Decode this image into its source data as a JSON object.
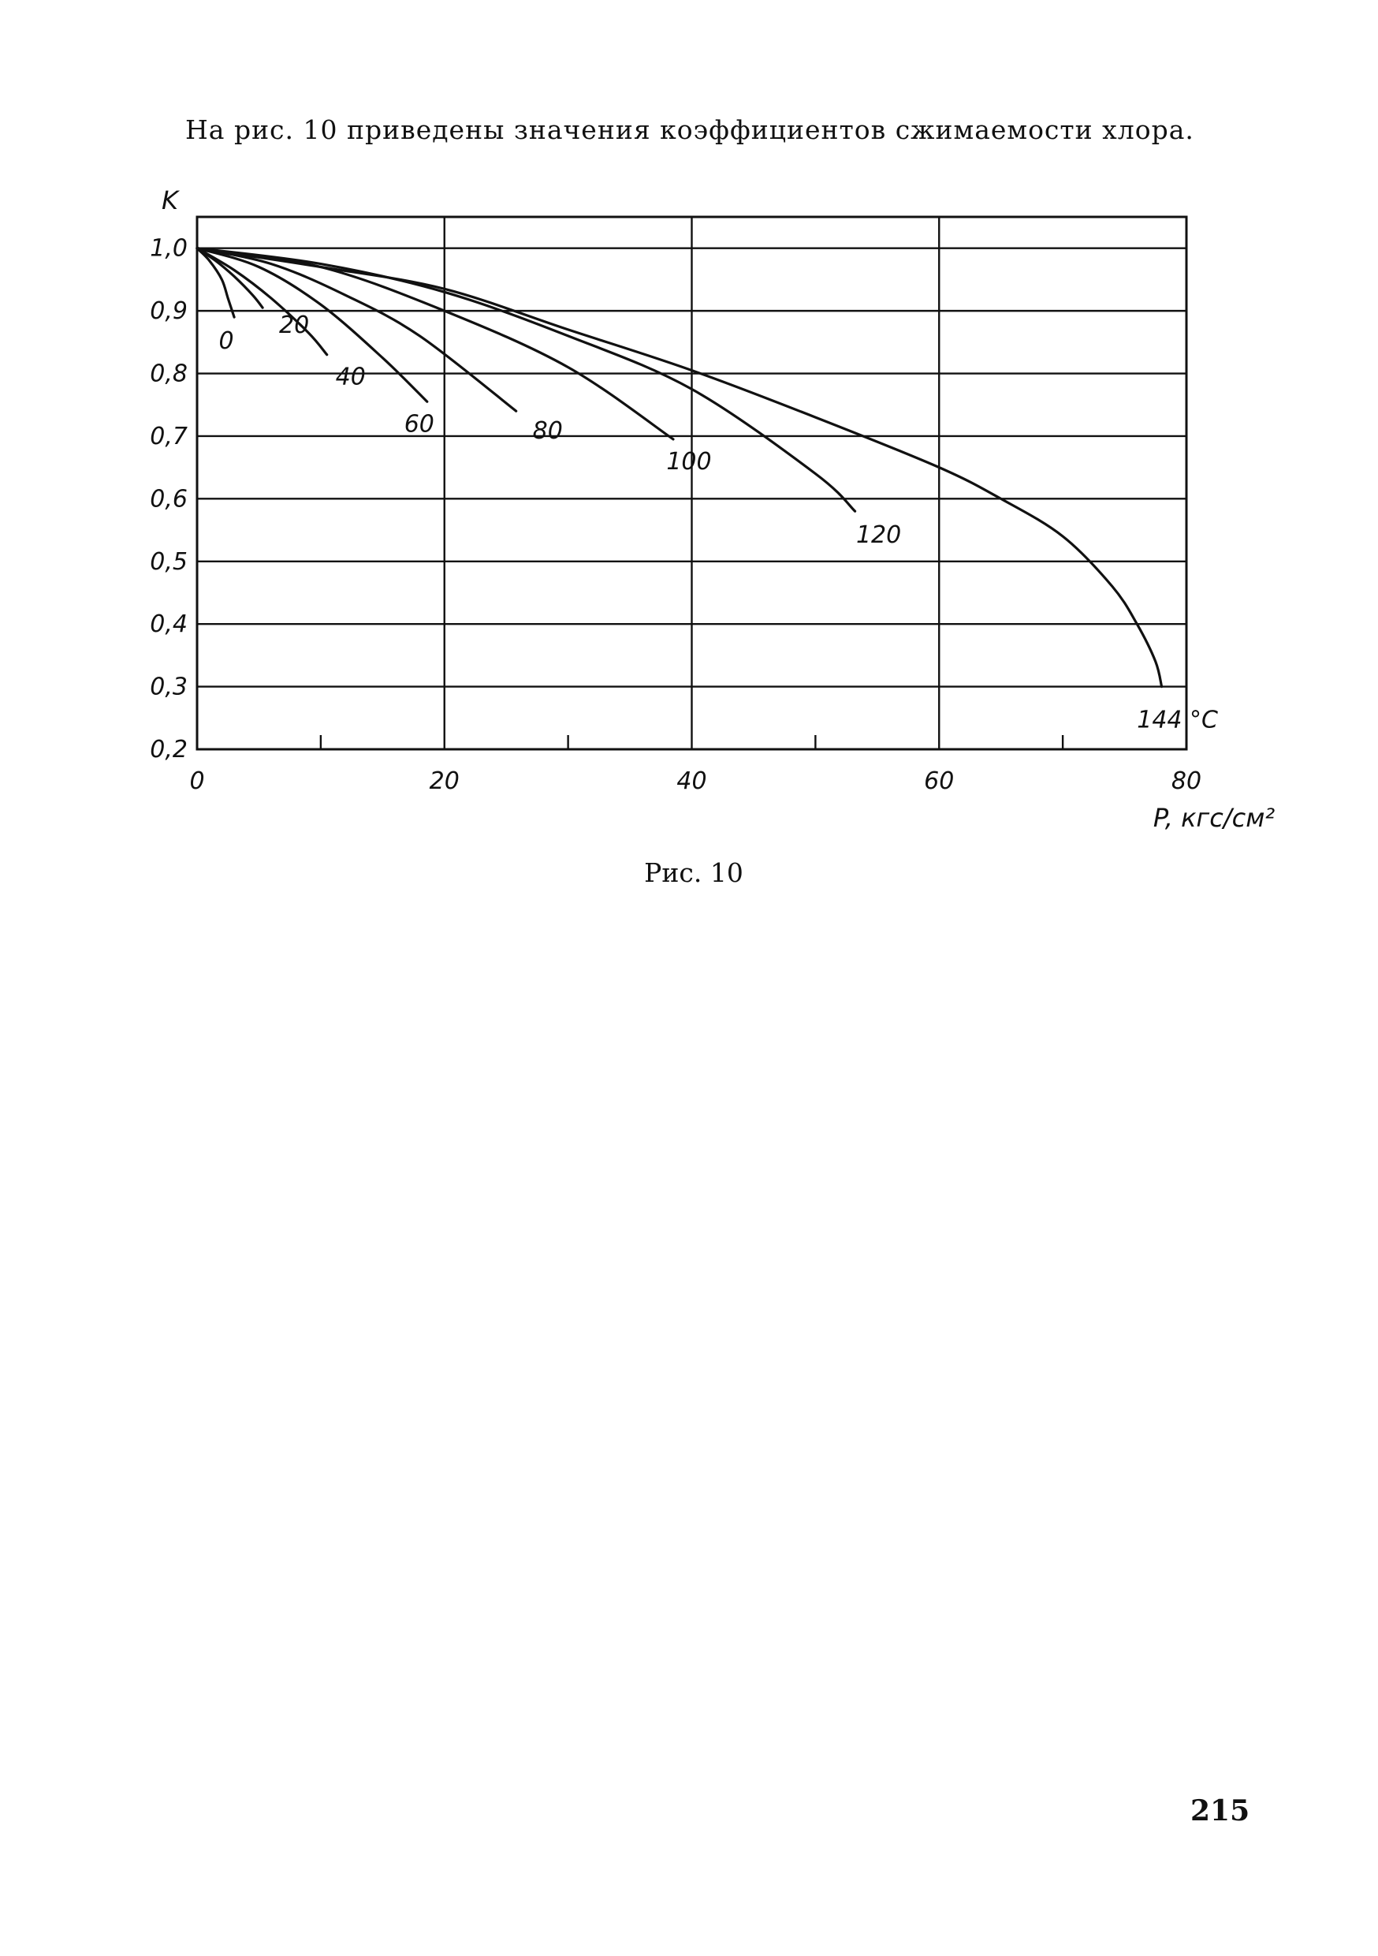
{
  "document": {
    "intro_text": "На рис. 10 приведены значения коэффициентов сжимаемости хлора.",
    "caption": "Рис. 10",
    "page_number": "215"
  },
  "chart_data": {
    "type": "line",
    "title": "",
    "xlabel": "P, кгс/см²",
    "ylabel": "K",
    "xlim": [
      0,
      80
    ],
    "ylim": [
      0.2,
      1.05
    ],
    "grid": true,
    "x_major_ticks": [
      0,
      20,
      40,
      60,
      80
    ],
    "x_tick_labels": [
      "0",
      "20",
      "40",
      "60",
      "80"
    ],
    "x_minor_ticks": [
      10,
      30,
      50,
      70
    ],
    "y_ticks": [
      0.2,
      0.3,
      0.4,
      0.5,
      0.6,
      0.7,
      0.8,
      0.9,
      1.0
    ],
    "y_tick_labels": [
      "0,2",
      "0,3",
      "0,4",
      "0,5",
      "0,6",
      "0,7",
      "0,8",
      "0,9",
      "1,0"
    ],
    "series": [
      {
        "name": "0",
        "x": [
          0,
          1,
          2,
          2.5,
          3.0
        ],
        "y": [
          1.0,
          0.98,
          0.95,
          0.92,
          0.89
        ]
      },
      {
        "name": "20",
        "x": [
          0,
          1.5,
          3,
          4.5,
          5.3
        ],
        "y": [
          1.0,
          0.98,
          0.955,
          0.925,
          0.905
        ]
      },
      {
        "name": "40",
        "x": [
          0,
          3,
          6,
          9,
          10.5
        ],
        "y": [
          1.0,
          0.965,
          0.92,
          0.865,
          0.83
        ]
      },
      {
        "name": "60",
        "x": [
          0,
          5,
          10,
          15,
          18.6
        ],
        "y": [
          1.0,
          0.97,
          0.91,
          0.825,
          0.755
        ]
      },
      {
        "name": "80",
        "x": [
          0,
          6,
          12,
          18,
          25.8
        ],
        "y": [
          1.0,
          0.975,
          0.925,
          0.86,
          0.74
        ]
      },
      {
        "name": "100",
        "x": [
          0,
          10,
          20,
          30,
          38.5
        ],
        "y": [
          1.0,
          0.97,
          0.9,
          0.81,
          0.695
        ]
      },
      {
        "name": "120",
        "x": [
          0,
          10,
          20,
          30,
          40,
          50,
          53.2
        ],
        "y": [
          1.0,
          0.975,
          0.93,
          0.86,
          0.775,
          0.64,
          0.58
        ]
      },
      {
        "name": "144 °C",
        "x": [
          0,
          10,
          20,
          30,
          40,
          50,
          60,
          65,
          70,
          74,
          76,
          77.5,
          78.0
        ],
        "y": [
          1.0,
          0.97,
          0.935,
          0.87,
          0.805,
          0.73,
          0.65,
          0.6,
          0.54,
          0.46,
          0.4,
          0.34,
          0.3
        ]
      }
    ]
  }
}
